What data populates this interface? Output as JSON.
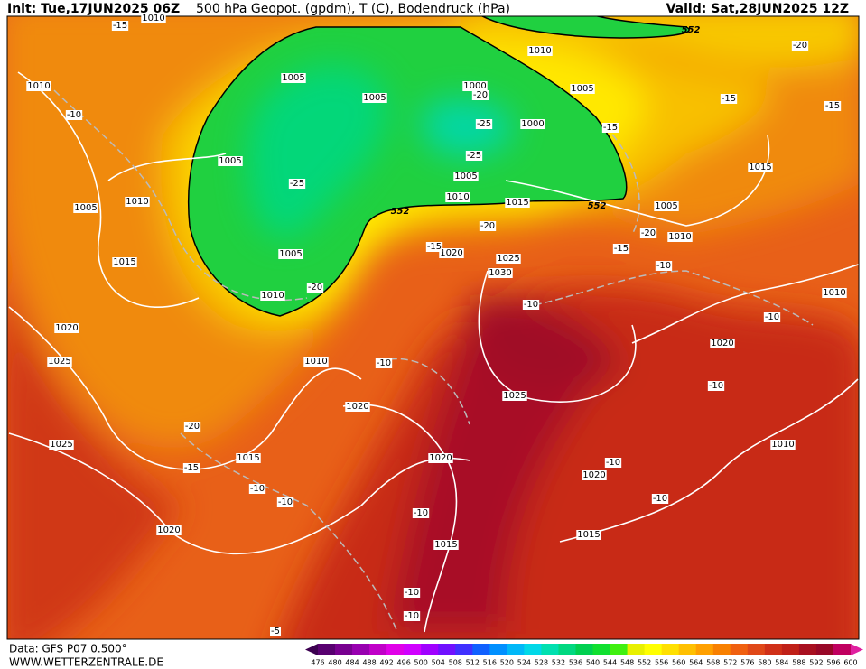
{
  "header": {
    "init": "Init: Tue,17JUN2025 06Z",
    "title": "500 hPa Geopot. (gpdm), T (C), Bodendruck (hPa)",
    "valid": "Valid: Sat,28JUN2025 12Z"
  },
  "footer": {
    "data": "Data: GFS P07 0.500°",
    "site": "WWW.WETTERZENTRALE.DE"
  },
  "colorbar": {
    "labels": [
      476,
      480,
      484,
      488,
      492,
      496,
      500,
      504,
      508,
      512,
      516,
      520,
      524,
      528,
      532,
      536,
      540,
      544,
      548,
      552,
      556,
      560,
      564,
      568,
      572,
      576,
      580,
      584,
      588,
      592,
      596,
      600
    ],
    "colors": [
      "#3c0050",
      "#580070",
      "#780090",
      "#9800b0",
      "#c000c8",
      "#e000e8",
      "#d000ff",
      "#a000ff",
      "#7010ff",
      "#4030ff",
      "#1060ff",
      "#0090ff",
      "#00b8f8",
      "#00d8e8",
      "#00e0b0",
      "#00d880",
      "#00d050",
      "#10e030",
      "#40f010",
      "#e8f000",
      "#ffff00",
      "#ffe000",
      "#ffc000",
      "#ffa000",
      "#f88000",
      "#f06010",
      "#e04818",
      "#d03018",
      "#c02018",
      "#a81020",
      "#980828",
      "#c00060",
      "#e020a0"
    ]
  },
  "isobar_labels": [
    "1010",
    "1010",
    "1005",
    "1005",
    "1000",
    "1000",
    "1010",
    "1005",
    "1005",
    "1005",
    "1010",
    "1015",
    "1005",
    "1010",
    "1015",
    "1005",
    "1010",
    "1020",
    "1025",
    "1030",
    "1005",
    "1010",
    "1015",
    "1010",
    "1020",
    "1025",
    "1010",
    "1020",
    "1020",
    "1025",
    "1025",
    "1015",
    "1020",
    "1010",
    "1020",
    "1020",
    "1015",
    "1015"
  ],
  "temperature_labels": [
    "-15",
    "-20",
    "-10",
    "-15",
    "-15",
    "-20",
    "-25",
    "-25",
    "-25",
    "-15",
    "-20",
    "-20",
    "-15",
    "-15",
    "-10",
    "-20",
    "-10",
    "-10",
    "-10",
    "-10",
    "-20",
    "-15",
    "-10",
    "-10",
    "-10",
    "-10",
    "-10",
    "-10",
    "-10",
    "-5"
  ],
  "geopotential_labels": [
    "552",
    "552",
    "552"
  ]
}
